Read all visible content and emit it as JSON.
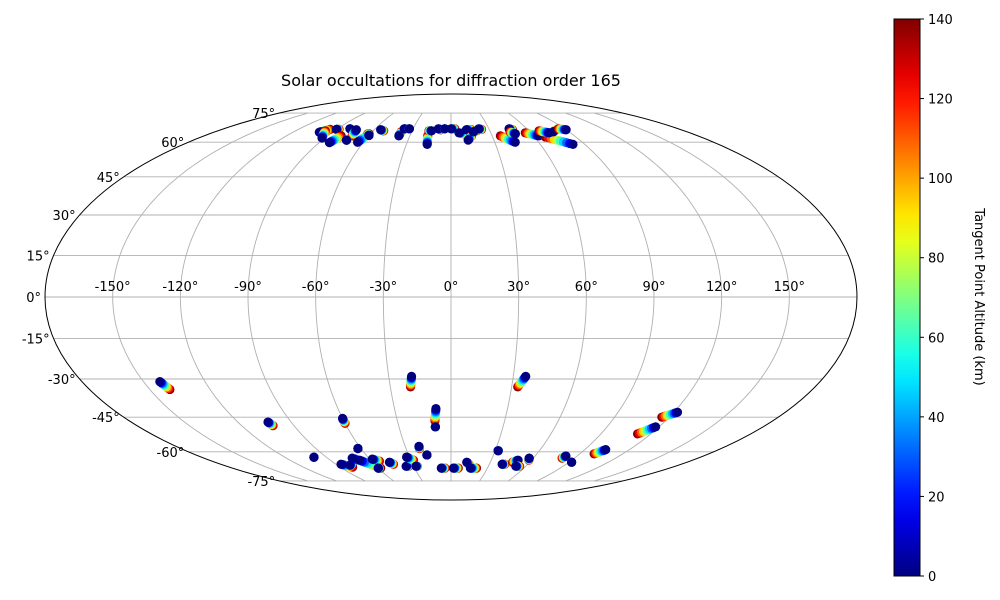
{
  "chart_data": {
    "type": "scatter",
    "projection": "mollweide",
    "title": "Solar occultations for diffraction order 165",
    "lon_ticks": [
      "-150°",
      "-120°",
      "-90°",
      "-60°",
      "-30°",
      "0°",
      "30°",
      "60°",
      "90°",
      "120°",
      "150°"
    ],
    "lon_tick_values": [
      -150,
      -120,
      -90,
      -60,
      -30,
      0,
      30,
      60,
      90,
      120,
      150
    ],
    "lat_ticks": [
      "-75°",
      "-60°",
      "-45°",
      "-30°",
      "-15°",
      "0°",
      "15°",
      "30°",
      "45°",
      "60°",
      "75°"
    ],
    "lat_tick_values": [
      -75,
      -60,
      -45,
      -30,
      -15,
      0,
      15,
      30,
      45,
      60,
      75
    ],
    "grid": true,
    "colorbar": {
      "label": "Tangent Point Altitude (km)",
      "range": [
        0,
        140
      ],
      "ticks": [
        "0",
        "20",
        "40",
        "60",
        "80",
        "100",
        "120",
        "140"
      ],
      "tick_values": [
        0,
        20,
        40,
        60,
        80,
        100,
        120,
        140
      ],
      "colormap": "jet"
    },
    "occultation_tracks": [
      {
        "start": [
          -100,
          64.8
        ],
        "end": [
          -95,
          66.2
        ]
      },
      {
        "start": [
          -92,
          62
        ],
        "end": [
          -97,
          65.5
        ]
      },
      {
        "start": [
          -90,
          66.2
        ],
        "end": [
          -88,
          66.2
        ]
      },
      {
        "start": [
          -83,
          59.8
        ],
        "end": [
          -80,
          63
        ]
      },
      {
        "start": [
          -80,
          66.5
        ],
        "end": [
          -80,
          66.5
        ]
      },
      {
        "start": [
          -74,
          66
        ],
        "end": [
          -72,
          63
        ]
      },
      {
        "start": [
          -73,
          61
        ],
        "end": [
          -73,
          61
        ]
      },
      {
        "start": [
          -64,
          60
        ],
        "end": [
          -61,
          64
        ]
      },
      {
        "start": [
          -60,
          63.2
        ],
        "end": [
          -62,
          64
        ]
      },
      {
        "start": [
          -55,
          66
        ],
        "end": [
          -52,
          65.5
        ]
      },
      {
        "start": [
          -38,
          63
        ],
        "end": [
          -38,
          65
        ]
      },
      {
        "start": [
          -37,
          66.5
        ],
        "end": [
          -36,
          66.5
        ]
      },
      {
        "start": [
          -33,
          66.5
        ],
        "end": [
          -33,
          66.5
        ]
      },
      {
        "start": [
          -16,
          59
        ],
        "end": [
          -17,
          63
        ]
      },
      {
        "start": [
          -15,
          65.5
        ],
        "end": [
          -17,
          65.5
        ]
      },
      {
        "start": [
          -10,
          66.5
        ],
        "end": [
          -8,
          66
        ]
      },
      {
        "start": [
          -5,
          66.5
        ],
        "end": [
          -5,
          66.5
        ]
      },
      {
        "start": [
          0,
          66.5
        ],
        "end": [
          3,
          66.5
        ]
      },
      {
        "start": [
          6,
          64.5
        ],
        "end": [
          10,
          64
        ]
      },
      {
        "start": [
          12,
          66
        ],
        "end": [
          16,
          66
        ]
      },
      {
        "start": [
          12,
          61
        ],
        "end": [
          15,
          63
        ]
      },
      {
        "start": [
          17,
          65
        ],
        "end": [
          20,
          65.5
        ]
      },
      {
        "start": [
          22,
          66.5
        ],
        "end": [
          24,
          66.2
        ]
      },
      {
        "start": [
          44,
          60
        ],
        "end": [
          36,
          63
        ]
      },
      {
        "start": [
          46,
          66.5
        ],
        "end": [
          48,
          66
        ]
      },
      {
        "start": [
          48,
          64
        ],
        "end": [
          45,
          65
        ]
      },
      {
        "start": [
          64,
          63
        ],
        "end": [
          56,
          64.5
        ]
      },
      {
        "start": [
          82,
          59
        ],
        "end": [
          68,
          62.5
        ]
      },
      {
        "start": [
          74,
          64.5
        ],
        "end": [
          68,
          65.5
        ]
      },
      {
        "start": [
          78,
          65
        ],
        "end": [
          80,
          65.5
        ]
      },
      {
        "start": [
          90,
          66
        ],
        "end": [
          85,
          66.5
        ]
      },
      {
        "start": [
          -142,
          -31
        ],
        "end": [
          -140,
          -34
        ]
      },
      {
        "start": [
          -103,
          -47
        ],
        "end": [
          -102,
          -48.5
        ]
      },
      {
        "start": [
          -60,
          -45.5
        ],
        "end": [
          -60,
          -47.5
        ]
      },
      {
        "start": [
          -99,
          -62.6
        ],
        "end": [
          -99,
          -62.6
        ]
      },
      {
        "start": [
          -86,
          -66
        ],
        "end": [
          -80,
          -67.5
        ]
      },
      {
        "start": [
          -80,
          -66.5
        ],
        "end": [
          -78,
          -66.2
        ]
      },
      {
        "start": [
          -72,
          -63
        ],
        "end": [
          -60,
          -67
        ]
      },
      {
        "start": [
          -68,
          -64
        ],
        "end": [
          -58,
          -68
        ]
      },
      {
        "start": [
          -58,
          -63.5
        ],
        "end": [
          -54,
          -64.5
        ]
      },
      {
        "start": [
          -60,
          -68
        ],
        "end": [
          -59,
          -68
        ]
      },
      {
        "start": [
          -47,
          -65
        ],
        "end": [
          -45,
          -66
        ]
      },
      {
        "start": [
          -62,
          -58.5
        ],
        "end": [
          -62,
          -58.5
        ]
      },
      {
        "start": [
          -36,
          -67
        ],
        "end": [
          -34,
          -67
        ]
      },
      {
        "start": [
          -32,
          -62.5
        ],
        "end": [
          -28,
          -64
        ]
      },
      {
        "start": [
          -28,
          -67
        ],
        "end": [
          -27,
          -67
        ]
      },
      {
        "start": [
          -21,
          -57.5
        ],
        "end": [
          -21,
          -58.5
        ]
      },
      {
        "start": [
          -17,
          -61.5
        ],
        "end": [
          -17,
          -61.5
        ]
      },
      {
        "start": [
          -19,
          -29
        ],
        "end": [
          -20,
          -33
        ]
      },
      {
        "start": [
          -8,
          -41.5
        ],
        "end": [
          -9,
          -46.5
        ]
      },
      {
        "start": [
          -9,
          -49
        ],
        "end": [
          -9,
          -49
        ]
      },
      {
        "start": [
          -8,
          -68
        ],
        "end": [
          -5,
          -68
        ]
      },
      {
        "start": [
          2,
          -68
        ],
        "end": [
          6,
          -68
        ]
      },
      {
        "start": [
          12,
          -65
        ],
        "end": [
          14,
          -66
        ]
      },
      {
        "start": [
          16,
          -68
        ],
        "end": [
          21,
          -68
        ]
      },
      {
        "start": [
          36,
          -29
        ],
        "end": [
          33,
          -33
        ]
      },
      {
        "start": [
          32,
          -59.5
        ],
        "end": [
          32,
          -59.5
        ]
      },
      {
        "start": [
          40,
          -66
        ],
        "end": [
          42,
          -66
        ]
      },
      {
        "start": [
          50,
          -64
        ],
        "end": [
          47,
          -65
        ]
      },
      {
        "start": [
          52,
          -67
        ],
        "end": [
          55,
          -67
        ]
      },
      {
        "start": [
          57,
          -63
        ],
        "end": [
          58,
          -64
        ]
      },
      {
        "start": [
          82,
          -62
        ],
        "end": [
          81,
          -63
        ]
      },
      {
        "start": [
          92,
          -65
        ],
        "end": [
          92,
          -65
        ]
      },
      {
        "start": [
          104,
          -59
        ],
        "end": [
          100,
          -61
        ]
      },
      {
        "start": [
          118,
          -49
        ],
        "end": [
          112,
          -52
        ]
      },
      {
        "start": [
          122,
          -43
        ],
        "end": [
          116,
          -45
        ]
      }
    ]
  }
}
